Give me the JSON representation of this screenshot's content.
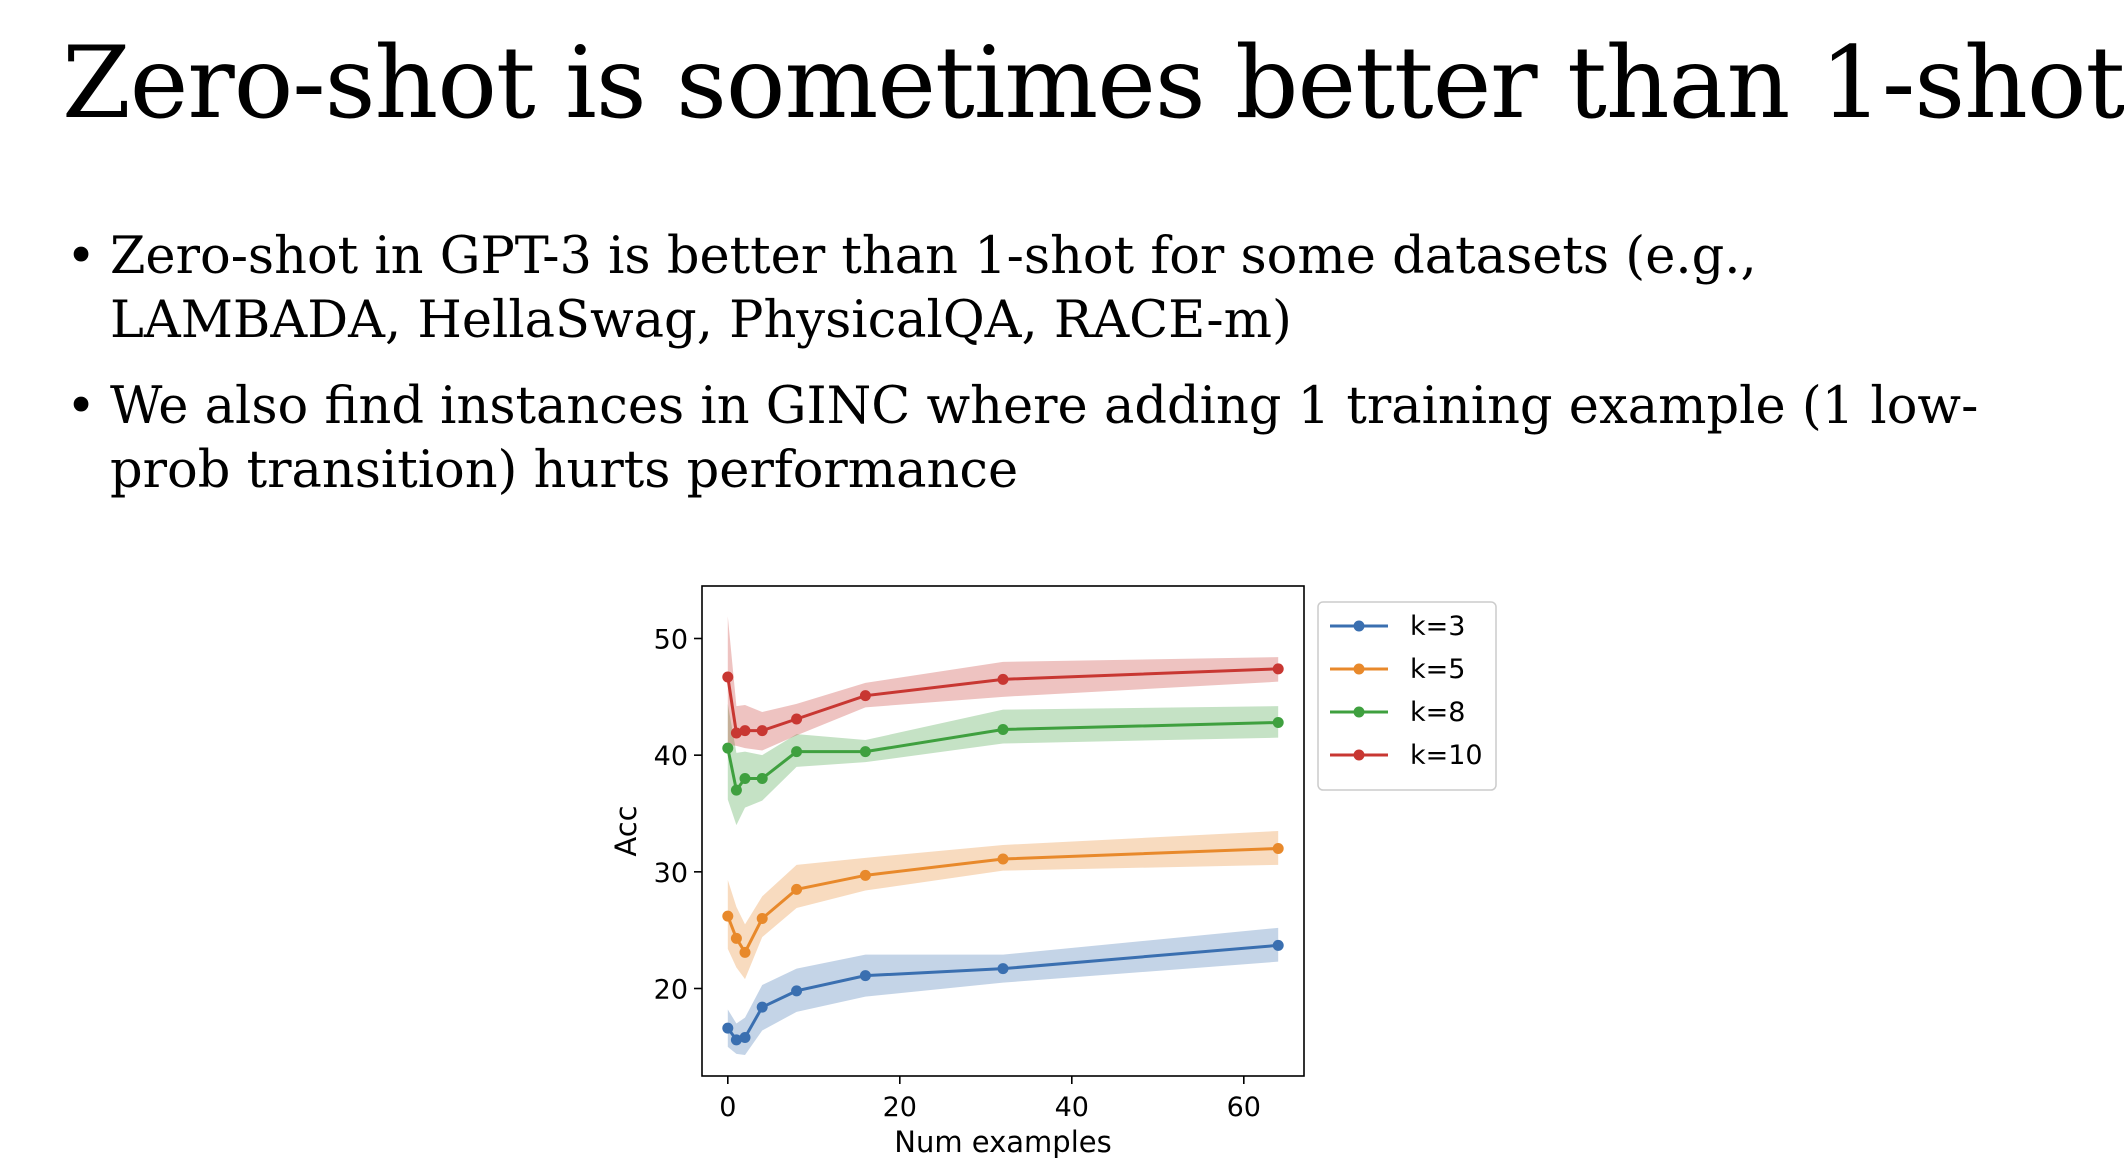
{
  "slide": {
    "title": "Zero-shot is sometimes better than 1-shot",
    "bullets": [
      "Zero-shot in GPT-3 is better than 1-shot for some datasets (e.g., LAMBADA, HellaSwag, PhysicalQA, RACE-m)",
      "We also find instances in GINC where adding 1 training example (1 low-prob transition) hurts performance"
    ],
    "bullet_glyph": "•"
  },
  "chart_data": {
    "type": "line",
    "title": "",
    "xlabel": "Num examples",
    "ylabel": "Acc",
    "xlim": [
      -3,
      67
    ],
    "ylim": [
      12.5,
      54.5
    ],
    "xticks": [
      0,
      20,
      40,
      60
    ],
    "yticks": [
      20,
      30,
      40,
      50
    ],
    "grid": false,
    "legend_position": "outside-right-top",
    "x": [
      0,
      1,
      2,
      4,
      8,
      16,
      32,
      64
    ],
    "series": [
      {
        "name": "k=3",
        "color": "#3a6fb0",
        "values": [
          16.6,
          15.6,
          15.8,
          18.4,
          19.8,
          21.1,
          21.7,
          23.7
        ],
        "lower": [
          15.0,
          14.4,
          14.3,
          16.4,
          18.0,
          19.3,
          20.5,
          22.3
        ],
        "upper": [
          18.2,
          17.0,
          17.5,
          20.3,
          21.7,
          22.9,
          22.9,
          25.2
        ]
      },
      {
        "name": "k=5",
        "color": "#e8892b",
        "values": [
          26.2,
          24.3,
          23.1,
          26.0,
          28.5,
          29.7,
          31.1,
          32.0
        ],
        "lower": [
          23.4,
          21.8,
          20.8,
          24.4,
          26.9,
          28.4,
          30.1,
          30.6
        ],
        "upper": [
          29.3,
          27.0,
          25.5,
          27.9,
          30.6,
          31.2,
          32.3,
          33.5
        ]
      },
      {
        "name": "k=8",
        "color": "#3fa03f",
        "values": [
          40.6,
          37.0,
          38.0,
          38.0,
          40.3,
          40.3,
          42.2,
          42.8
        ],
        "lower": [
          36.2,
          34.0,
          35.5,
          36.1,
          39.0,
          39.4,
          41.0,
          41.5
        ],
        "upper": [
          44.4,
          40.2,
          40.3,
          40.0,
          41.8,
          41.3,
          43.9,
          44.2
        ]
      },
      {
        "name": "k=10",
        "color": "#c83732",
        "values": [
          46.7,
          41.9,
          42.1,
          42.1,
          43.1,
          45.1,
          46.5,
          47.4
        ],
        "lower": [
          40.9,
          40.8,
          40.6,
          40.4,
          41.7,
          44.1,
          45.0,
          46.3
        ],
        "upper": [
          51.9,
          44.2,
          44.3,
          43.7,
          44.4,
          46.2,
          48.0,
          48.4
        ]
      }
    ]
  }
}
